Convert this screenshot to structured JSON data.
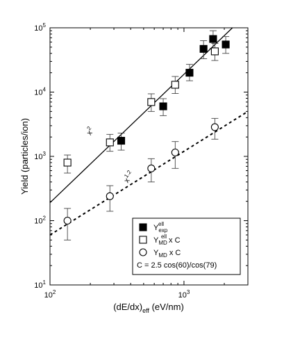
{
  "chart_data": {
    "type": "scatter",
    "x_scale": "log",
    "y_scale": "log",
    "xlim": [
      100,
      3000
    ],
    "ylim": [
      10,
      100000
    ],
    "xlabel_main": "(dE/dx)",
    "xlabel_sub": "eff",
    "xlabel_unit": " (eV/nm)",
    "ylabel": "Yield (particles/ion)",
    "x_ticks": [
      {
        "value": 100,
        "base": "10",
        "exp": "2"
      },
      {
        "value": 1000,
        "base": "10",
        "exp": "3"
      }
    ],
    "y_ticks": [
      {
        "value": 10,
        "base": "10",
        "exp": "1"
      },
      {
        "value": 100,
        "base": "10",
        "exp": "2"
      },
      {
        "value": 1000,
        "base": "10",
        "exp": "3"
      },
      {
        "value": 10000,
        "base": "10",
        "exp": "4"
      },
      {
        "value": 100000,
        "base": "10",
        "exp": "5"
      }
    ],
    "series": [
      {
        "name": "Y_exp^ell",
        "marker": "filled-square",
        "points": [
          {
            "x": 340,
            "y": 1750,
            "ylo": 1250,
            "yhi": 2300
          },
          {
            "x": 700,
            "y": 6000,
            "ylo": 4300,
            "yhi": 7900
          },
          {
            "x": 1100,
            "y": 20000,
            "ylo": 15000,
            "yhi": 27000
          },
          {
            "x": 1400,
            "y": 47000,
            "ylo": 33000,
            "yhi": 63000
          },
          {
            "x": 1650,
            "y": 67000,
            "ylo": 48000,
            "yhi": 90000
          },
          {
            "x": 2050,
            "y": 55000,
            "ylo": 40000,
            "yhi": 73000
          }
        ]
      },
      {
        "name": "Y_MD^ell x C",
        "marker": "open-square",
        "points": [
          {
            "x": 135,
            "y": 800,
            "ylo": 550,
            "yhi": 1050
          },
          {
            "x": 280,
            "y": 1650,
            "ylo": 1200,
            "yhi": 2200
          },
          {
            "x": 570,
            "y": 7000,
            "ylo": 5000,
            "yhi": 9400
          },
          {
            "x": 860,
            "y": 13000,
            "ylo": 9500,
            "yhi": 17500
          },
          {
            "x": 1700,
            "y": 43000,
            "ylo": 31000,
            "yhi": 57000
          }
        ]
      },
      {
        "name": "Y_MD x C",
        "marker": "open-circle",
        "points": [
          {
            "x": 135,
            "y": 100,
            "ylo": 50,
            "yhi": 155
          },
          {
            "x": 280,
            "y": 240,
            "ylo": 140,
            "yhi": 350
          },
          {
            "x": 570,
            "y": 650,
            "ylo": 400,
            "yhi": 920
          },
          {
            "x": 860,
            "y": 1150,
            "ylo": 650,
            "yhi": 1700
          },
          {
            "x": 1700,
            "y": 2850,
            "ylo": 1850,
            "yhi": 3900
          }
        ]
      }
    ],
    "fits": [
      {
        "style": "solid",
        "x_start": 100,
        "x_end": 2300,
        "y_start": 190,
        "y_end": 100000
      },
      {
        "style": "dotted",
        "x_start": 100,
        "x_end": 3000,
        "y_start": 60,
        "y_end": 5000
      }
    ],
    "annotations": [
      {
        "text": "x",
        "sup": "2",
        "x": 200,
        "y": 2100,
        "angle": -55
      },
      {
        "text": "x",
        "sup": "1.2",
        "x": 380,
        "y": 380,
        "angle": -55
      }
    ],
    "legend": {
      "position": "bottom-right",
      "entries": [
        {
          "marker": "filled-square",
          "base": "Y",
          "sub": "exp",
          "sup": "ell",
          "suffix": ""
        },
        {
          "marker": "open-square",
          "base": "Y",
          "sub": "MD",
          "sup": "ell",
          "suffix": " x C"
        },
        {
          "marker": "open-circle",
          "base": "Y",
          "sub": "MD",
          "sup": "",
          "suffix": " x C"
        }
      ],
      "formula": "C = 2.5 cos(60)/cos(79)"
    }
  }
}
